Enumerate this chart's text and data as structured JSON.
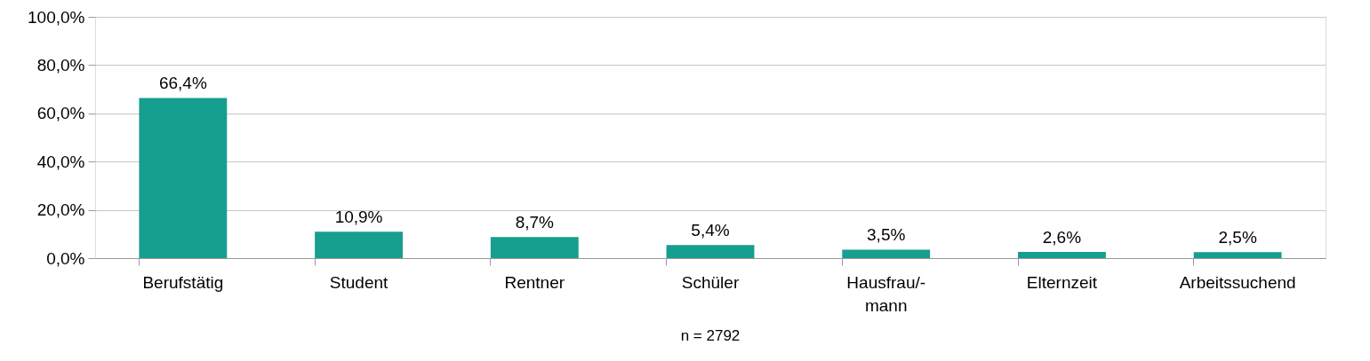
{
  "chart_data": {
    "type": "bar",
    "categories": [
      "Berufstätig",
      "Student",
      "Rentner",
      "Schüler",
      "Hausfrau/-\nmann",
      "Elternzeit",
      "Arbeitssuchend"
    ],
    "values": [
      66.4,
      10.9,
      8.7,
      5.4,
      3.5,
      2.6,
      2.5
    ],
    "value_labels": [
      "66,4%",
      "10,9%",
      "8,7%",
      "5,4%",
      "3,5%",
      "2,6%",
      "2,5%"
    ],
    "color": "#169e8f",
    "ylim": [
      0,
      100
    ],
    "yticks": [
      {
        "value": 0,
        "label": "0,0%"
      },
      {
        "value": 20,
        "label": "20,0%"
      },
      {
        "value": 40,
        "label": "40,0%"
      },
      {
        "value": 60,
        "label": "60,0%"
      },
      {
        "value": 80,
        "label": "80,0%"
      },
      {
        "value": 100,
        "label": "100,0%"
      }
    ],
    "grid": "y",
    "annotations": [
      "n = 2792"
    ]
  }
}
